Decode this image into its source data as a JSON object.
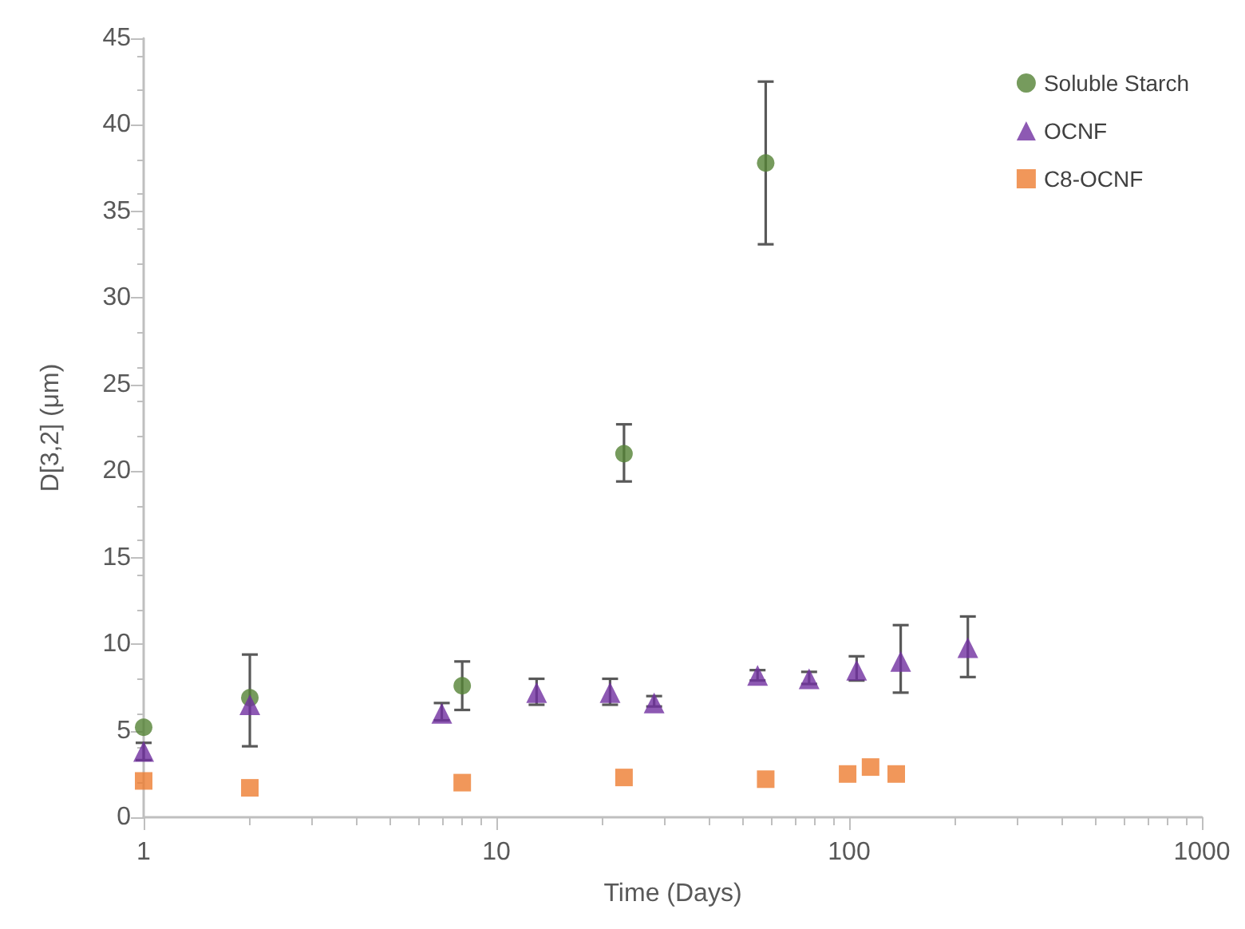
{
  "chart_data": {
    "type": "scatter",
    "xlabel": "Time (Days)",
    "ylabel": "D[3,2] (μm)",
    "log": "x",
    "xlim": [
      1,
      1000
    ],
    "xticks": [
      1,
      10,
      100,
      1000
    ],
    "ylim": [
      0,
      45
    ],
    "yticks": [
      0,
      5,
      10,
      15,
      20,
      25,
      30,
      35,
      40,
      45
    ],
    "grid": false,
    "legend": "top right",
    "series": [
      {
        "name": "Soluble Starch",
        "color": "#548235",
        "marker": "circle",
        "x": [
          1,
          2,
          8,
          23,
          58
        ],
        "values": [
          5.2,
          6.9,
          7.6,
          21.0,
          37.8
        ],
        "errors": [
          null,
          [
            4.1,
            9.4
          ],
          [
            6.2,
            9.0
          ],
          [
            19.4,
            22.7
          ],
          [
            33.1,
            42.5
          ]
        ]
      },
      {
        "name": "OCNF",
        "color": "#7030a0",
        "marker": "triangle",
        "x": [
          1,
          2,
          7,
          13,
          21,
          28,
          55,
          77,
          105,
          140,
          217
        ],
        "values": [
          3.8,
          6.5,
          6.0,
          7.2,
          7.2,
          6.6,
          8.2,
          8.0,
          8.5,
          9.0,
          9.8
        ],
        "errors": [
          [
            3.3,
            4.3
          ],
          null,
          [
            5.6,
            6.6
          ],
          [
            6.5,
            8.0
          ],
          [
            6.5,
            8.0
          ],
          [
            6.4,
            7.0
          ],
          [
            7.9,
            8.5
          ],
          [
            7.7,
            8.4
          ],
          [
            7.9,
            9.3
          ],
          [
            7.2,
            11.1
          ],
          [
            8.1,
            11.6
          ]
        ]
      },
      {
        "name": "C8-OCNF",
        "color": "#ed7d31",
        "marker": "square",
        "x": [
          1,
          2,
          8,
          23,
          58,
          99,
          115,
          136
        ],
        "values": [
          2.1,
          1.7,
          2.0,
          2.3,
          2.2,
          2.5,
          2.9,
          2.5
        ]
      }
    ]
  }
}
